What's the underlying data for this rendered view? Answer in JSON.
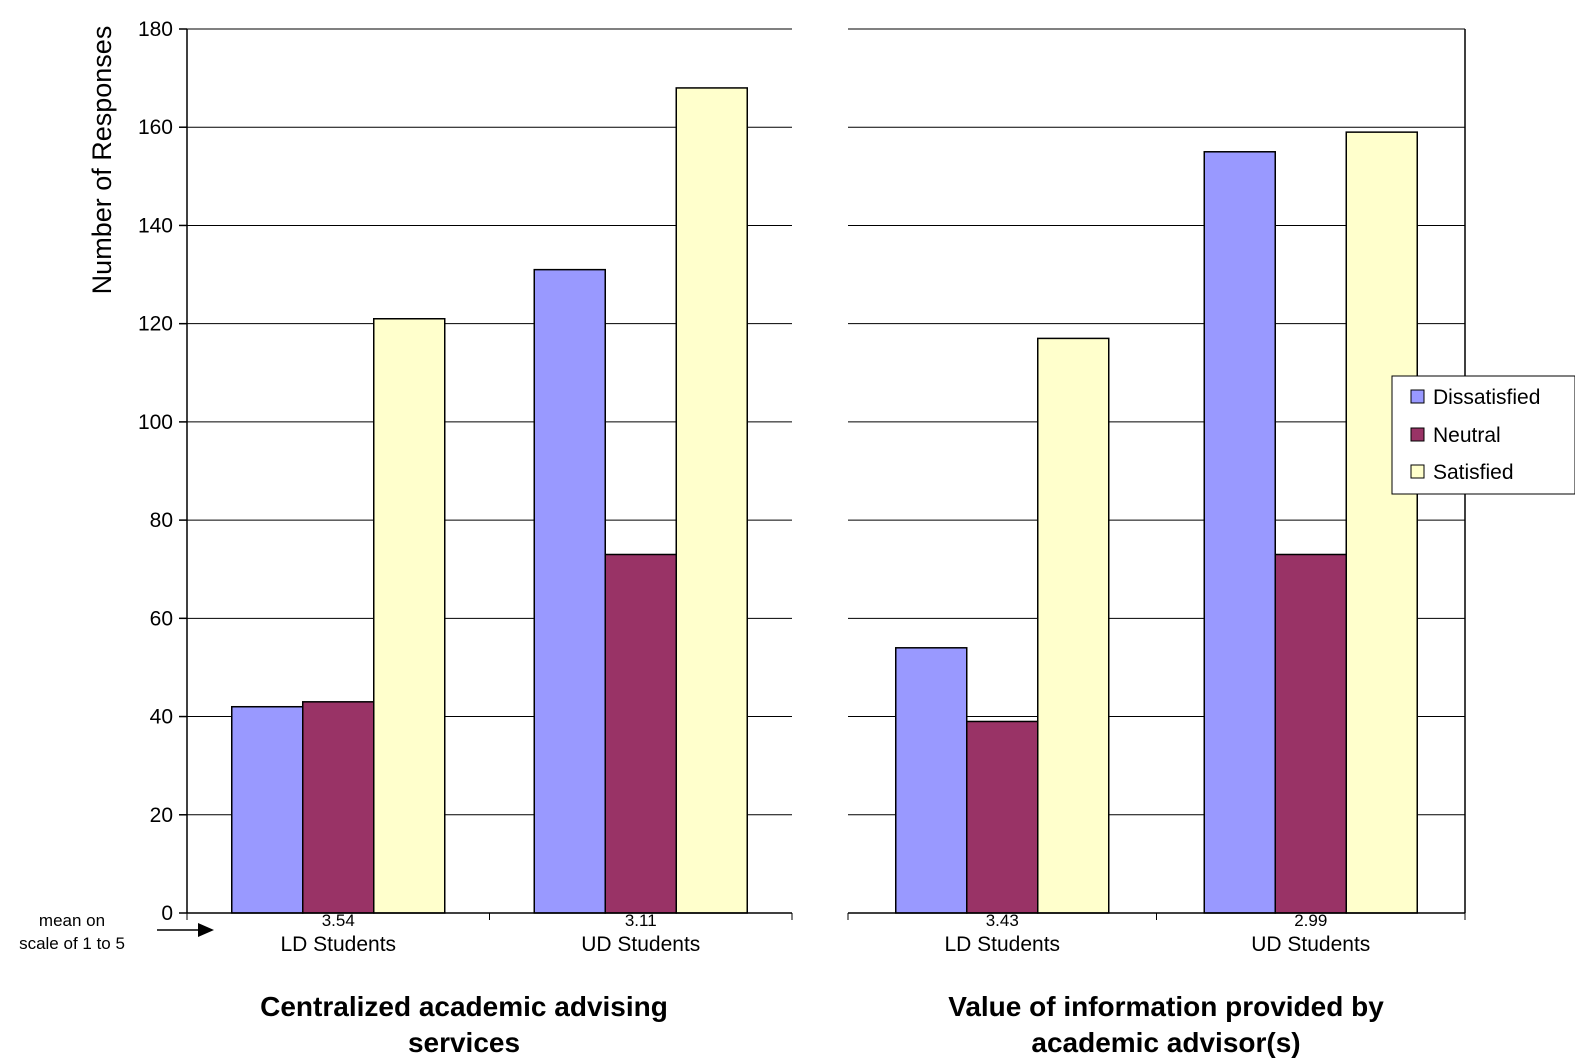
{
  "chart_data": {
    "type": "bar",
    "ylabel": "Number of Responses",
    "ylim": [
      0,
      180
    ],
    "yticks": [
      0,
      20,
      40,
      60,
      80,
      100,
      120,
      140,
      160,
      180
    ],
    "grid": true,
    "legend_position": "right",
    "series": [
      {
        "name": "Dissatisfied",
        "color": "#9999ff"
      },
      {
        "name": "Neutral",
        "color": "#993366"
      },
      {
        "name": "Satisfied",
        "color": "#ffffcc"
      }
    ],
    "mean_label_line1": "mean on",
    "mean_label_line2": "scale of 1 to 5",
    "panels": [
      {
        "title_line1": "Centralized academic advising",
        "title_line2": "services",
        "groups": [
          {
            "category": "LD Students",
            "mean": "3.54",
            "values": [
              42,
              43,
              121
            ]
          },
          {
            "category": "UD Students",
            "mean": "3.11",
            "values": [
              131,
              73,
              168
            ]
          }
        ]
      },
      {
        "title_line1": "Value of information provided by",
        "title_line2": "academic advisor(s)",
        "groups": [
          {
            "category": "LD Students",
            "mean": "3.43",
            "values": [
              54,
              39,
              117
            ]
          },
          {
            "category": "UD Students",
            "mean": "2.99",
            "values": [
              155,
              73,
              159
            ]
          }
        ]
      }
    ]
  }
}
